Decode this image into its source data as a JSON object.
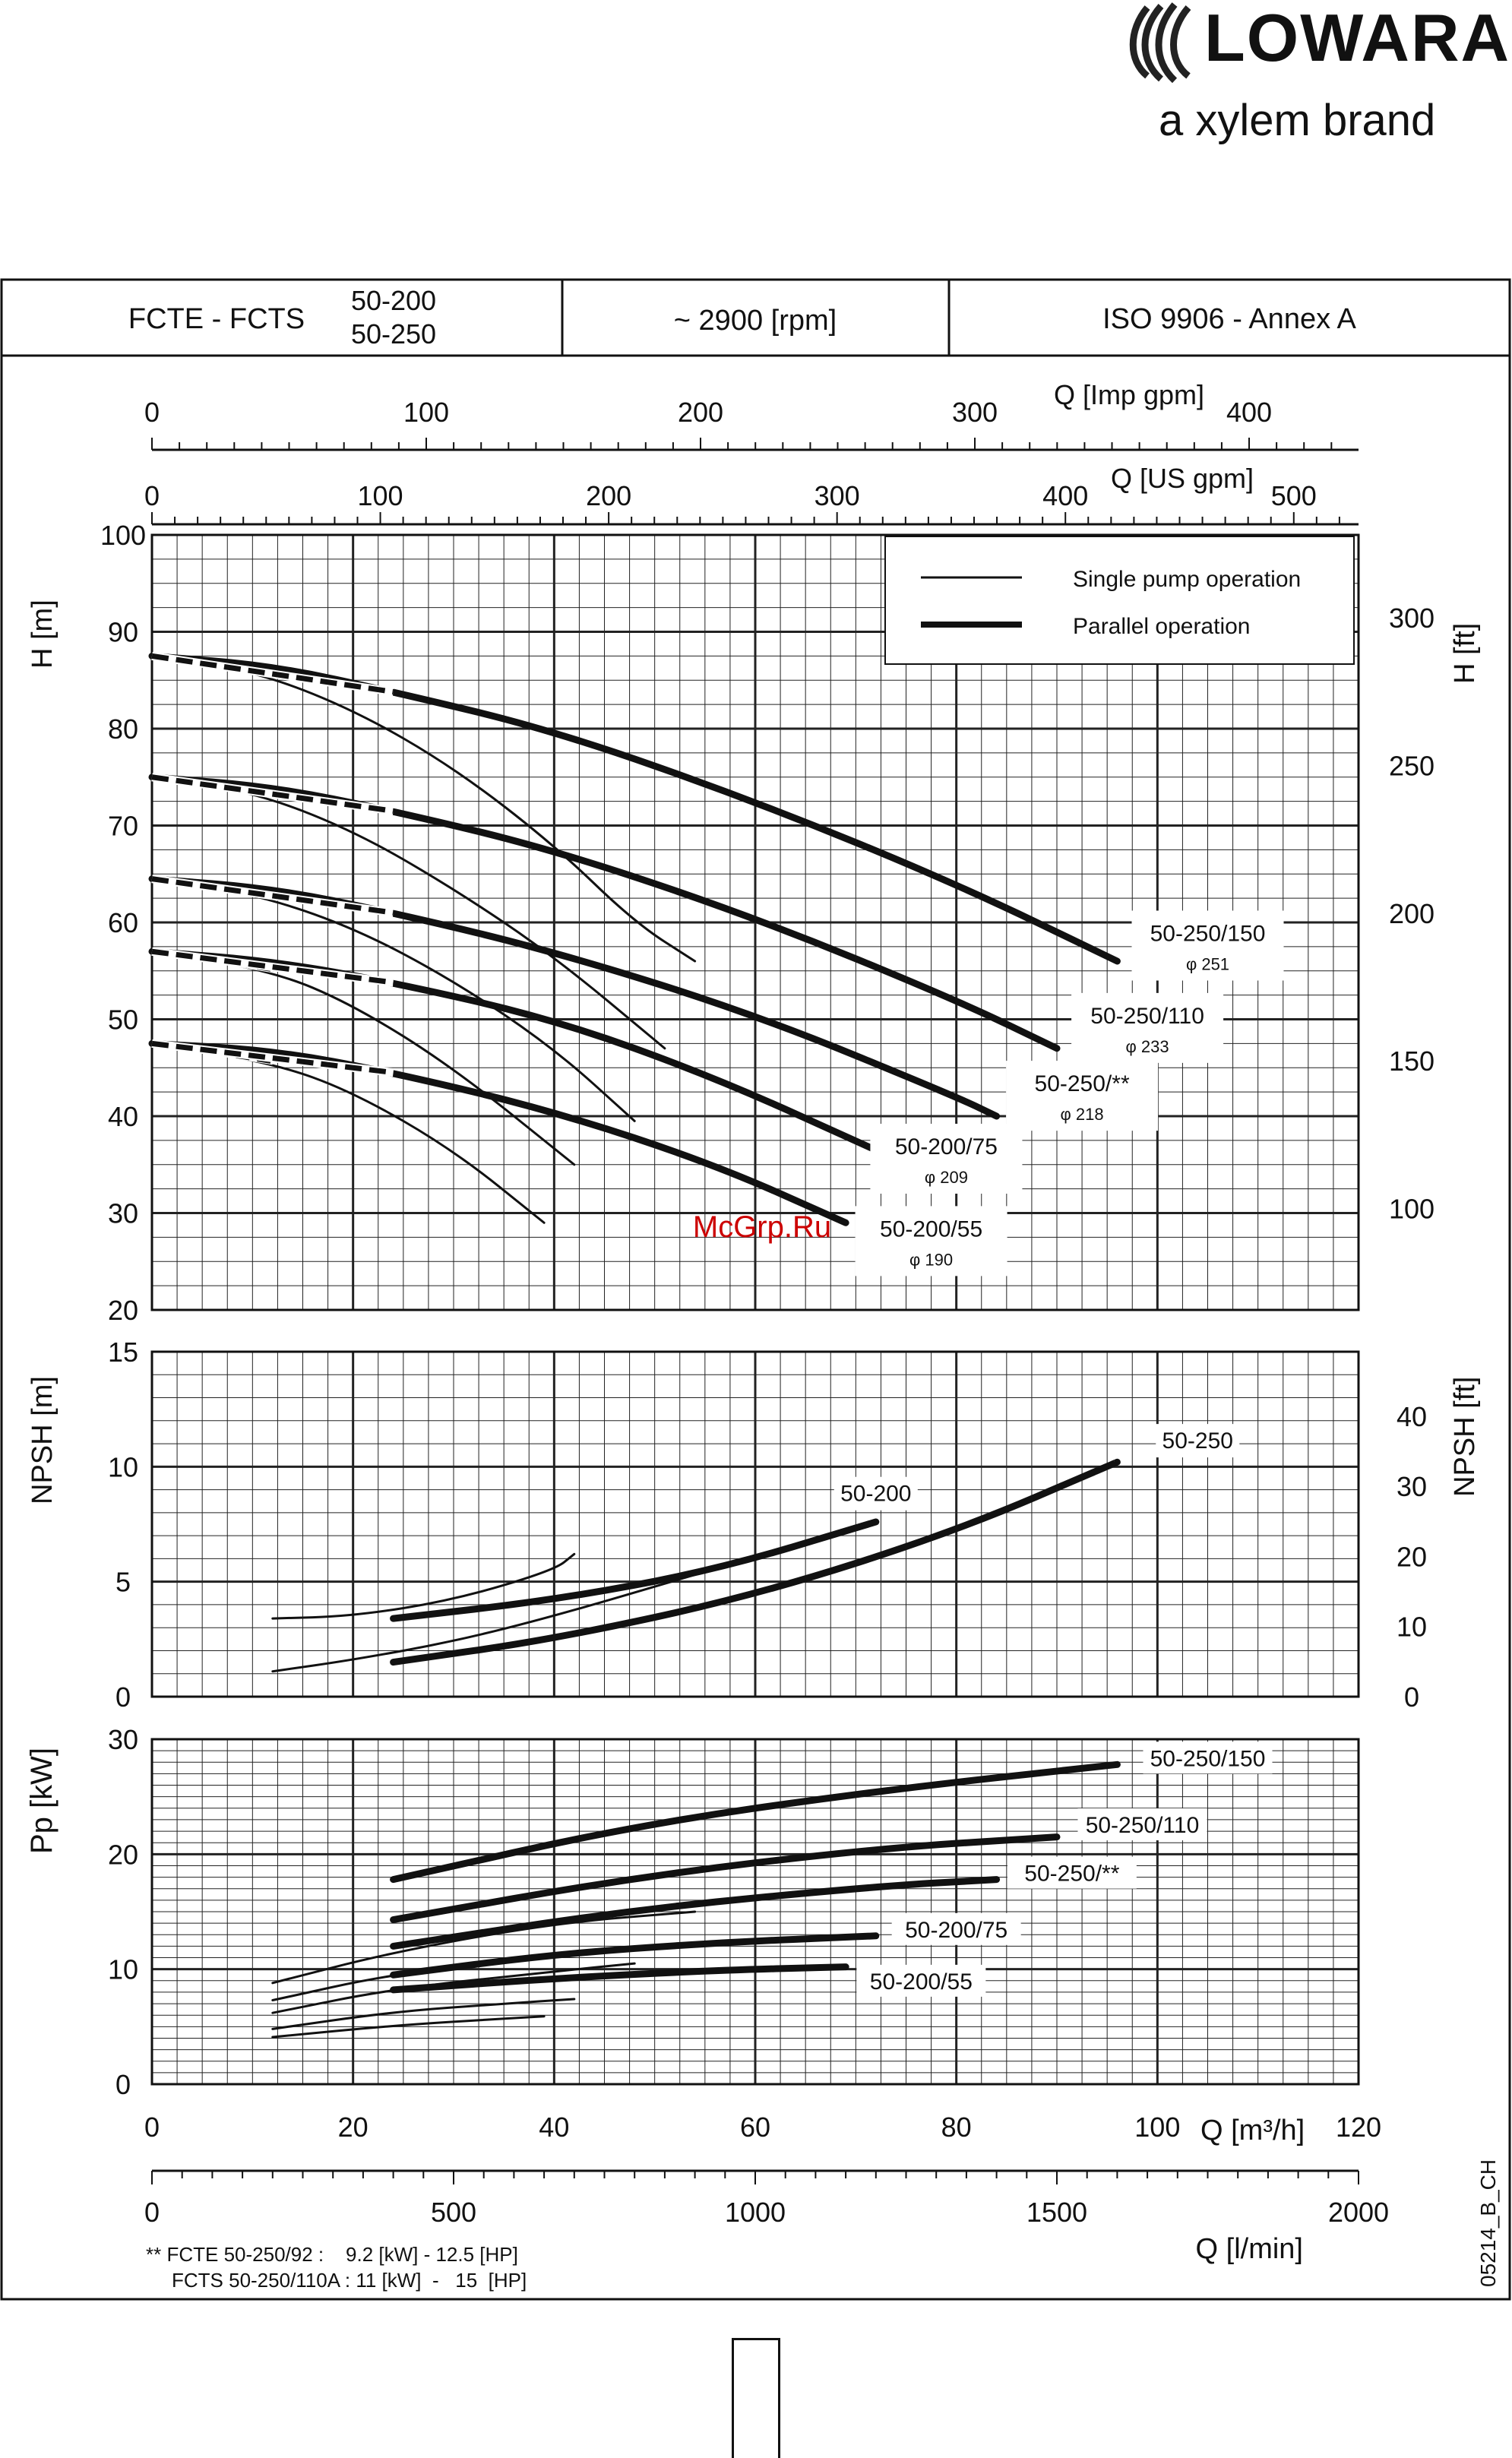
{
  "logo": {
    "brand": "LOWARA",
    "tagline": "a xylem brand"
  },
  "header": {
    "model": "FCTE - FCTS",
    "sizes": [
      "50-200",
      "50-250"
    ],
    "speed": "~ 2900 [rpm]",
    "standard": "ISO 9906 - Annex A"
  },
  "legend": {
    "single": "Single pump operation",
    "parallel": "Parallel operation"
  },
  "watermark": "McGrp.Ru",
  "doc_code": "05214_B_CH",
  "footnote": {
    "line1": "** FCTE 50-250/92 :    9.2 [kW] - 12.5 [HP]",
    "line2": "FCTS 50-250/110A : 11 [kW]  -   15  [HP]"
  },
  "colors": {
    "line": "#111111",
    "grid": "#222222",
    "watermark": "#cc0000"
  },
  "chart_data": [
    {
      "type": "line",
      "title": "",
      "xlabel": "Q [m3/h]",
      "ylabel": "H [m]",
      "ylabel_right": "H [ft]",
      "xlim": [
        0,
        120
      ],
      "ylim": [
        20,
        100
      ],
      "y_ticks": [
        20,
        30,
        40,
        50,
        60,
        70,
        80,
        90,
        100
      ],
      "y_right_ticks": [
        100,
        150,
        200,
        250,
        300
      ],
      "grid": true,
      "legend_position": "top-right",
      "series": [
        {
          "name": "50-250/150",
          "impeller": "φ 251",
          "mode": "single",
          "x": [
            0,
            10,
            20,
            30,
            40,
            48,
            54
          ],
          "y": [
            87.5,
            86,
            82,
            76,
            68,
            60,
            56
          ]
        },
        {
          "name": "50-250/150",
          "impeller": "φ 251",
          "mode": "parallel",
          "x": [
            0,
            12,
            24,
            40,
            60,
            80,
            96
          ],
          "y": [
            87.5,
            86.5,
            83.8,
            79.8,
            72.5,
            64,
            56
          ]
        },
        {
          "name": "50-250/110",
          "impeller": "φ 233",
          "mode": "single",
          "x": [
            0,
            10,
            20,
            30,
            40,
            51
          ],
          "y": [
            75,
            73.5,
            69.5,
            63.5,
            56.5,
            47
          ]
        },
        {
          "name": "50-250/110",
          "impeller": "φ 233",
          "mode": "parallel",
          "x": [
            0,
            12,
            24,
            40,
            60,
            80,
            90
          ],
          "y": [
            75,
            74,
            71.5,
            67.5,
            60.5,
            52,
            47
          ]
        },
        {
          "name": "50-250/**",
          "impeller": "φ 218",
          "mode": "single",
          "x": [
            0,
            10,
            20,
            30,
            40,
            48
          ],
          "y": [
            64.5,
            63,
            59.5,
            54,
            47,
            39.5
          ]
        },
        {
          "name": "50-250/**",
          "impeller": "φ 218",
          "mode": "parallel",
          "x": [
            0,
            12,
            24,
            40,
            60,
            80,
            84
          ],
          "y": [
            64.5,
            63.5,
            61,
            57,
            50.5,
            42,
            40
          ]
        },
        {
          "name": "50-200/75",
          "impeller": "φ 209",
          "mode": "single",
          "x": [
            0,
            12,
            20,
            30,
            42
          ],
          "y": [
            57,
            55,
            51.5,
            45,
            35
          ]
        },
        {
          "name": "50-200/75",
          "impeller": "φ 209",
          "mode": "parallel",
          "x": [
            0,
            12,
            24,
            40,
            56,
            72
          ],
          "y": [
            57,
            56,
            53.8,
            50,
            44,
            36.5
          ]
        },
        {
          "name": "50-200/55",
          "impeller": "φ 190",
          "mode": "single",
          "x": [
            0,
            12,
            20,
            30,
            39
          ],
          "y": [
            47.5,
            45.5,
            42.5,
            36.5,
            29
          ]
        },
        {
          "name": "50-200/55",
          "impeller": "φ 190",
          "mode": "parallel",
          "x": [
            0,
            12,
            24,
            40,
            56,
            69
          ],
          "y": [
            47.5,
            46.8,
            44.5,
            40.5,
            35,
            29
          ]
        }
      ]
    },
    {
      "type": "line",
      "title": "",
      "xlabel": "Q [m3/h]",
      "ylabel": "NPSH [m]",
      "ylabel_right": "NPSH [ft]",
      "xlim": [
        0,
        120
      ],
      "ylim": [
        0,
        15
      ],
      "y_ticks": [
        0,
        5,
        10,
        15
      ],
      "y_right_ticks": [
        0,
        10,
        20,
        30,
        40
      ],
      "grid": true,
      "series": [
        {
          "name": "50-200",
          "mode": "single",
          "x": [
            12,
            20,
            30,
            40,
            42
          ],
          "y": [
            3.4,
            3.5,
            4.2,
            5.5,
            6.2
          ]
        },
        {
          "name": "50-200",
          "mode": "parallel",
          "x": [
            24,
            40,
            56,
            72
          ],
          "y": [
            3.4,
            4.2,
            5.5,
            7.6
          ]
        },
        {
          "name": "50-250",
          "mode": "single",
          "x": [
            12,
            20,
            30,
            40,
            54
          ],
          "y": [
            1.1,
            1.6,
            2.4,
            3.5,
            5.3
          ]
        },
        {
          "name": "50-250",
          "mode": "parallel",
          "x": [
            24,
            40,
            60,
            80,
            96
          ],
          "y": [
            1.5,
            2.5,
            4.4,
            7.2,
            10.2
          ]
        }
      ]
    },
    {
      "type": "line",
      "title": "",
      "xlabel": "Q [m3/h]",
      "ylabel": "Pp [kW]",
      "xlim": [
        0,
        120
      ],
      "ylim": [
        0,
        30
      ],
      "x_ticks": [
        0,
        20,
        40,
        60,
        80,
        100,
        120
      ],
      "y_ticks": [
        0,
        10,
        20,
        30
      ],
      "grid": true,
      "series": [
        {
          "name": "50-250/150",
          "mode": "single",
          "x": [
            12,
            24,
            40,
            54
          ],
          "y": [
            8.8,
            11.5,
            14,
            15
          ]
        },
        {
          "name": "50-250/150",
          "mode": "parallel",
          "x": [
            24,
            48,
            72,
            96
          ],
          "y": [
            17.8,
            22.5,
            25.5,
            27.8
          ]
        },
        {
          "name": "50-250/110",
          "mode": "single",
          "x": [
            12,
            24,
            40,
            51
          ],
          "y": [
            7.3,
            9.6,
            11.2,
            11.8
          ]
        },
        {
          "name": "50-250/110",
          "mode": "parallel",
          "x": [
            24,
            48,
            72,
            90
          ],
          "y": [
            14.3,
            18,
            20.5,
            21.5
          ]
        },
        {
          "name": "50-250/**",
          "mode": "single",
          "x": [
            12,
            24,
            40,
            48
          ],
          "y": [
            6.2,
            8.3,
            9.8,
            10.5
          ]
        },
        {
          "name": "50-250/**",
          "mode": "parallel",
          "x": [
            24,
            48,
            72,
            84
          ],
          "y": [
            12,
            15.2,
            17.2,
            17.8
          ]
        },
        {
          "name": "50-200/75",
          "mode": "single",
          "x": [
            12,
            24,
            35,
            42
          ],
          "y": [
            4.8,
            6.3,
            7,
            7.4
          ]
        },
        {
          "name": "50-200/75",
          "mode": "parallel",
          "x": [
            24,
            40,
            56,
            72
          ],
          "y": [
            9.5,
            11.3,
            12.3,
            12.9
          ]
        },
        {
          "name": "50-200/55",
          "mode": "single",
          "x": [
            12,
            24,
            35,
            39
          ],
          "y": [
            4.1,
            5.1,
            5.7,
            5.9
          ]
        },
        {
          "name": "50-200/55",
          "mode": "parallel",
          "x": [
            24,
            40,
            56,
            69
          ],
          "y": [
            8.2,
            9.2,
            9.9,
            10.2
          ]
        }
      ]
    }
  ],
  "axes": {
    "imp_gpm": {
      "label": "Q [Imp gpm]",
      "ticks": [
        0,
        100,
        200,
        300,
        400
      ]
    },
    "us_gpm": {
      "label": "Q [US gpm]",
      "ticks": [
        0,
        100,
        200,
        300,
        400,
        500
      ]
    },
    "m3h": {
      "label": "Q [m³/h]",
      "ticks": [
        0,
        20,
        40,
        60,
        80,
        100,
        120
      ]
    },
    "lmin": {
      "label": "Q [l/min]",
      "ticks": [
        0,
        500,
        1000,
        1500,
        2000
      ]
    }
  }
}
